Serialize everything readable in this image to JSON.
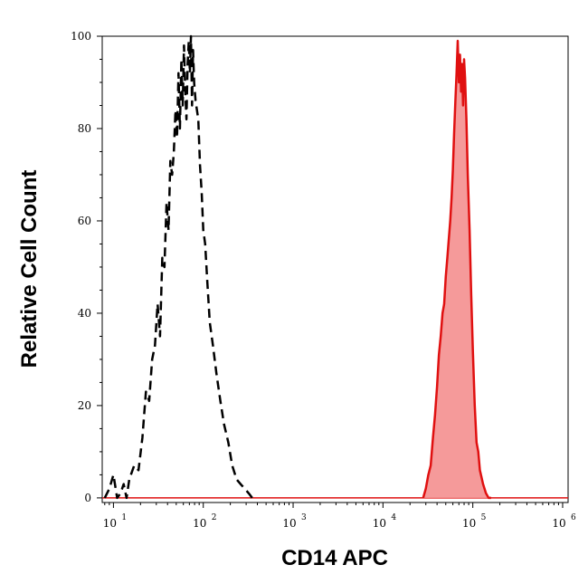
{
  "chart_data": {
    "type": "area",
    "xlabel": "CD14 APC",
    "ylabel": "Relative Cell Count",
    "x_scale": "log",
    "xlim": [
      7.5,
      1150000
    ],
    "ylim": [
      -1,
      100
    ],
    "x_ticks": [
      {
        "value": 10,
        "base": "10",
        "exp": "1"
      },
      {
        "value": 100,
        "base": "10",
        "exp": "2"
      },
      {
        "value": 1000,
        "base": "10",
        "exp": "3"
      },
      {
        "value": 10000,
        "base": "10",
        "exp": "4"
      },
      {
        "value": 100000,
        "base": "10",
        "exp": "5"
      },
      {
        "value": 1000000,
        "base": "10",
        "exp": "6"
      }
    ],
    "y_ticks": [
      0,
      20,
      40,
      60,
      80,
      100
    ],
    "grid": false,
    "series": [
      {
        "style": "dashed",
        "color": "#000000",
        "fill": null,
        "x": [
          8,
          9,
          10,
          11,
          12,
          13,
          14,
          15,
          17,
          19,
          21,
          23,
          25,
          27,
          29,
          31,
          33,
          35,
          37,
          39,
          41,
          43,
          45,
          47,
          49,
          51,
          53,
          55,
          57,
          59,
          61,
          63,
          65,
          67,
          69,
          71,
          73,
          75,
          77,
          79,
          82,
          85,
          88,
          92,
          96,
          100,
          105,
          110,
          118,
          128,
          140,
          155,
          170,
          190,
          210,
          235,
          260,
          290,
          320,
          350
        ],
        "values": [
          0,
          2,
          5,
          0,
          1,
          3,
          0,
          4,
          7,
          6,
          13,
          23,
          21,
          30,
          33,
          42,
          35,
          52,
          50,
          64,
          58,
          73,
          70,
          75,
          84,
          78,
          92,
          80,
          95,
          85,
          98,
          88,
          82,
          94,
          99,
          92,
          100,
          85,
          97,
          90,
          86,
          84,
          82,
          72,
          66,
          58,
          55,
          48,
          38,
          33,
          27,
          21,
          16,
          12,
          7,
          4,
          3,
          2,
          1,
          0
        ]
      },
      {
        "style": "solid",
        "color": "#e01010",
        "fill": "#f59a9a",
        "x": [
          28000,
          30000,
          32000,
          34000,
          36000,
          38000,
          40000,
          42000,
          44000,
          46000,
          48000,
          50000,
          52000,
          54000,
          56000,
          58000,
          60000,
          62000,
          64000,
          66000,
          68000,
          70000,
          72000,
          74000,
          76000,
          78000,
          80000,
          82000,
          85000,
          88000,
          92000,
          96000,
          100000,
          105000,
          110000,
          115000,
          120000,
          130000,
          140000,
          150000,
          160000
        ],
        "values": [
          0,
          2,
          5,
          7,
          13,
          18,
          24,
          31,
          35,
          40,
          42,
          48,
          52,
          56,
          60,
          65,
          71,
          79,
          86,
          92,
          99,
          90,
          96,
          88,
          94,
          85,
          95,
          91,
          82,
          70,
          58,
          44,
          32,
          20,
          12,
          10,
          6,
          3,
          1,
          0,
          0
        ]
      }
    ]
  }
}
